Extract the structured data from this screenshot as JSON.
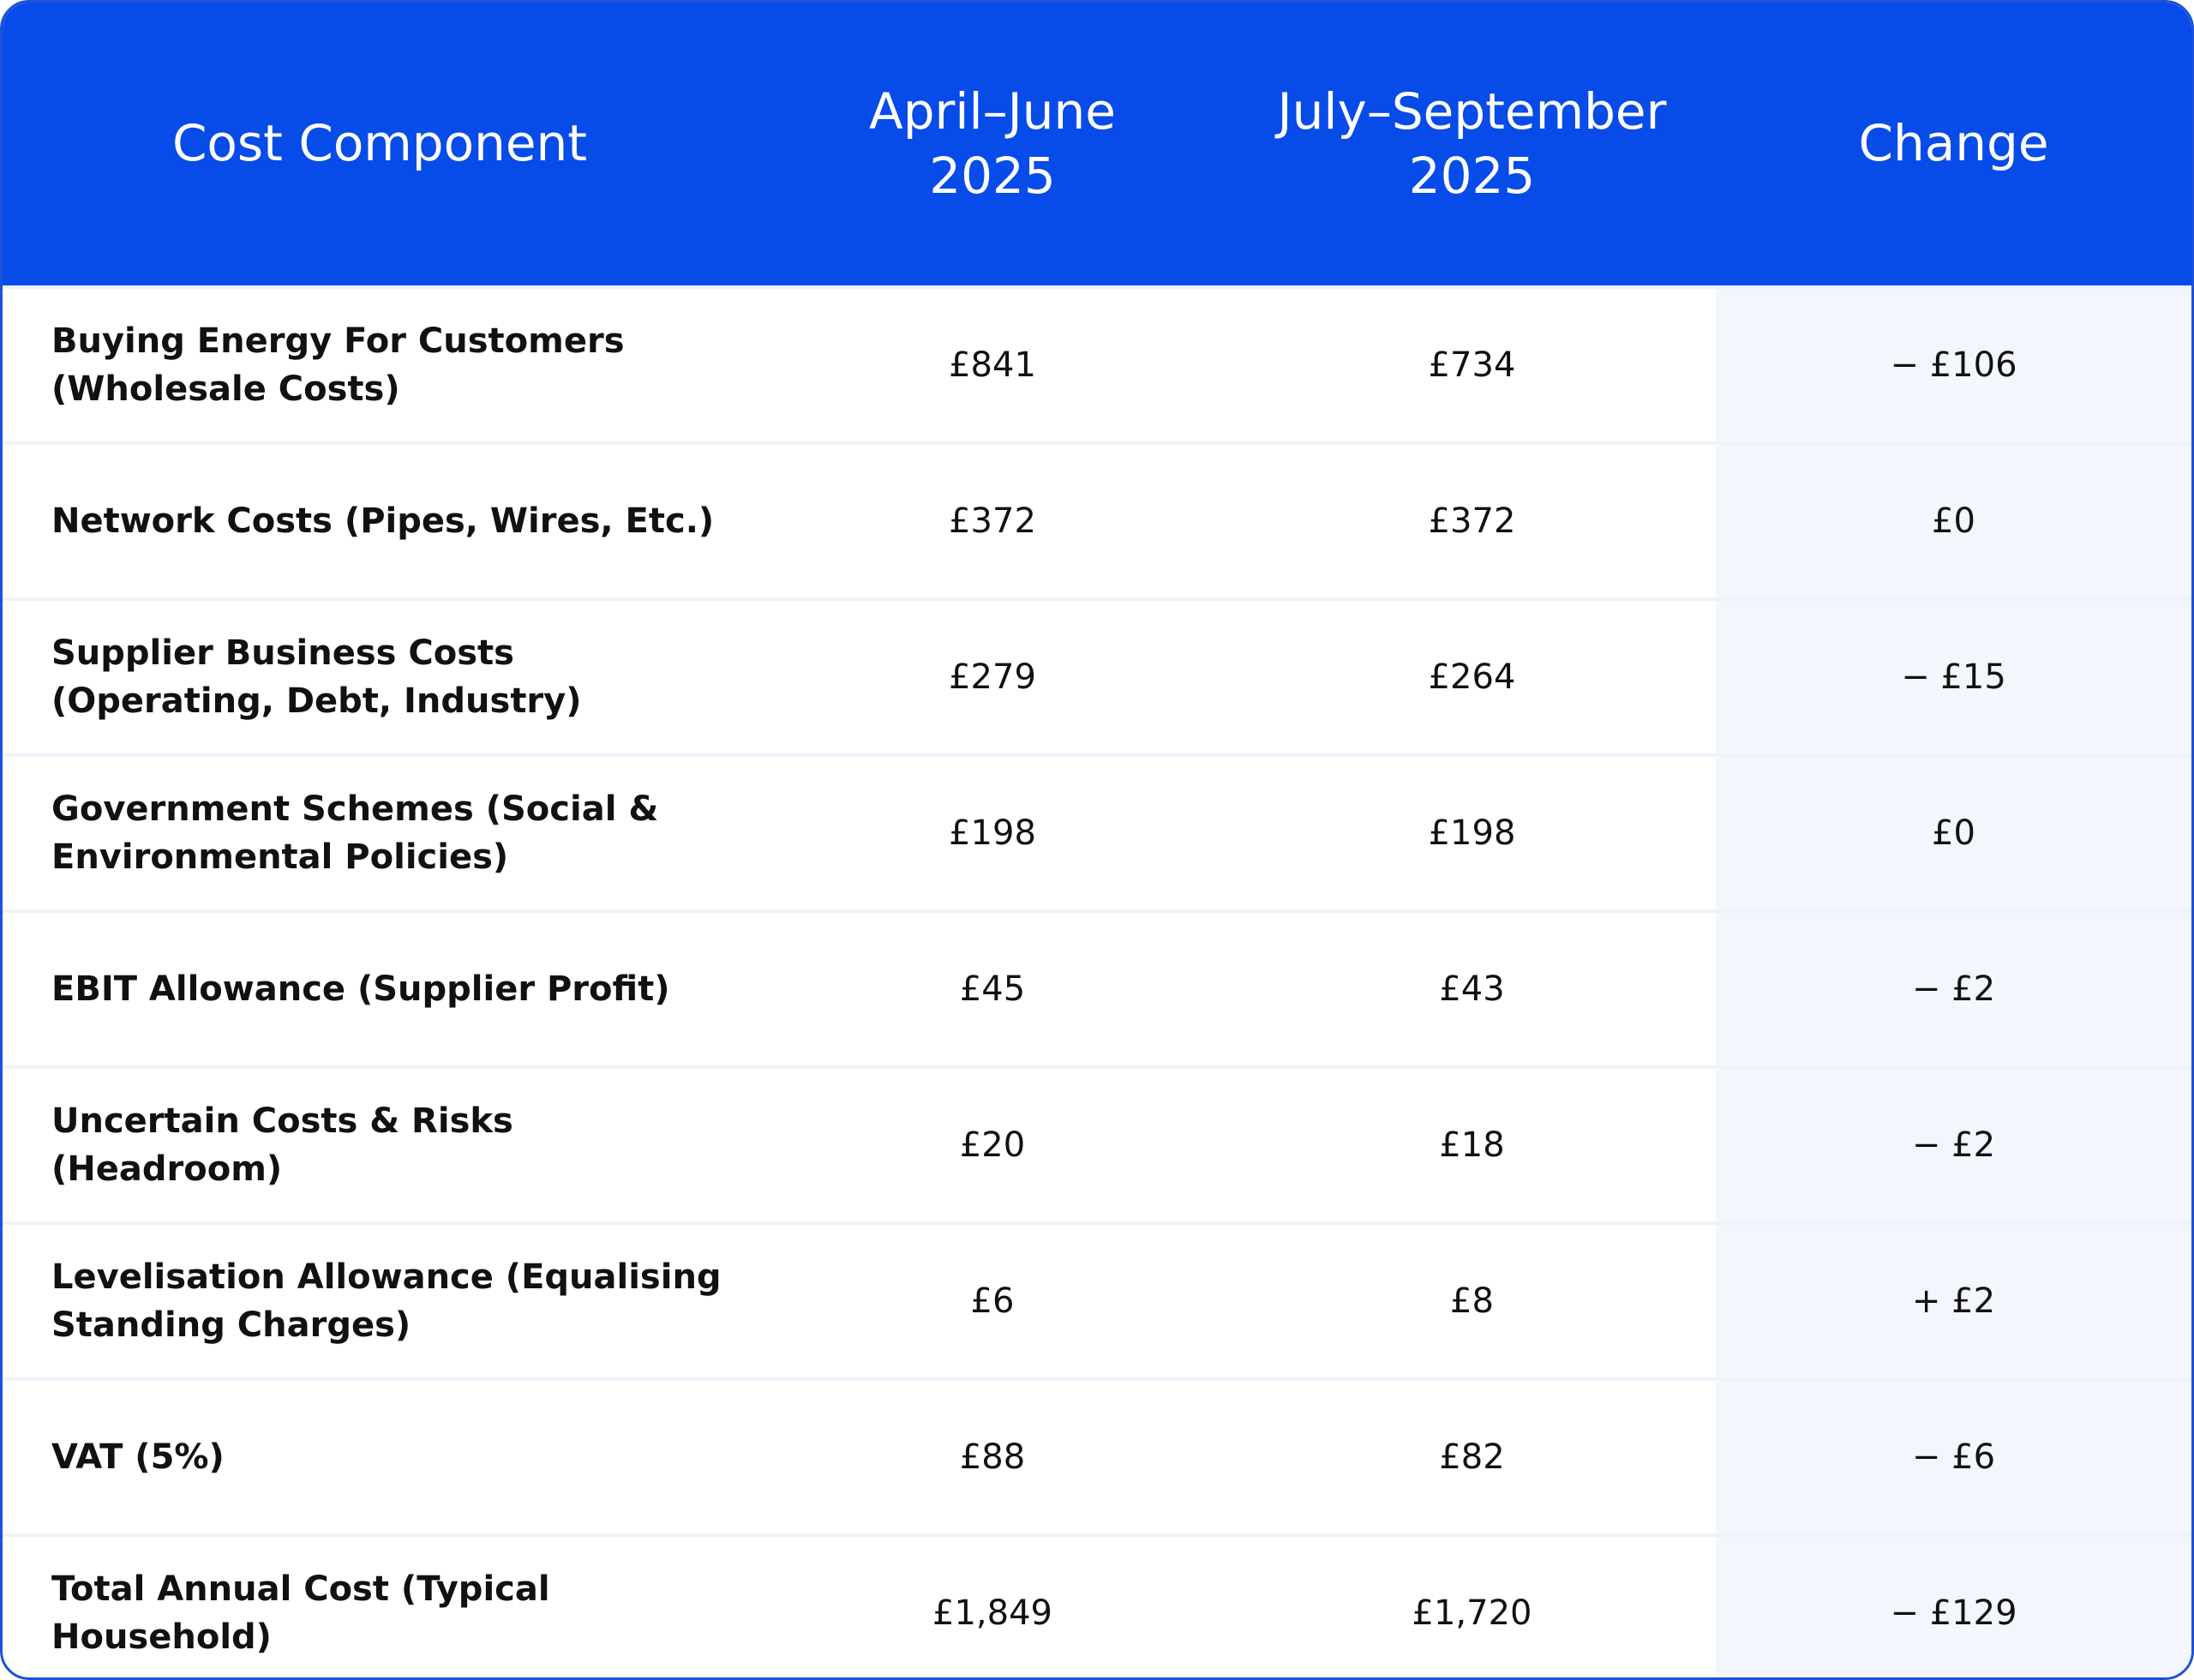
{
  "table": {
    "header": [
      "Cost Component",
      "April–June 2025",
      "July–September 2025",
      "Change"
    ],
    "rows": [
      [
        "Buying Energy For Customers (Wholesale Costs)",
        "£841",
        "£734",
        "− £106"
      ],
      [
        "Network Costs (Pipes, Wires, Etc.)",
        "£372",
        "£372",
        "£0"
      ],
      [
        "Supplier Business Costs (Operating, Debt, Industry)",
        "£279",
        "£264",
        "− £15"
      ],
      [
        "Government Schemes (Social & Environmental Policies)",
        "£198",
        "£198",
        "£0"
      ],
      [
        "EBIT Allowance (Supplier Profit)",
        "£45",
        "£43",
        "− £2"
      ],
      [
        "Uncertain Costs & Risks (Headroom)",
        "£20",
        "£18",
        "− £2"
      ],
      [
        "Levelisation Allowance (Equalising Standing Charges)",
        "£6",
        "£8",
        "+ £2"
      ],
      [
        "VAT (5%)",
        "£88",
        "£82",
        "− £6"
      ],
      [
        "Total Annual Cost (Typical Household)",
        "£1,849",
        "£1,720",
        "− £129"
      ]
    ]
  }
}
